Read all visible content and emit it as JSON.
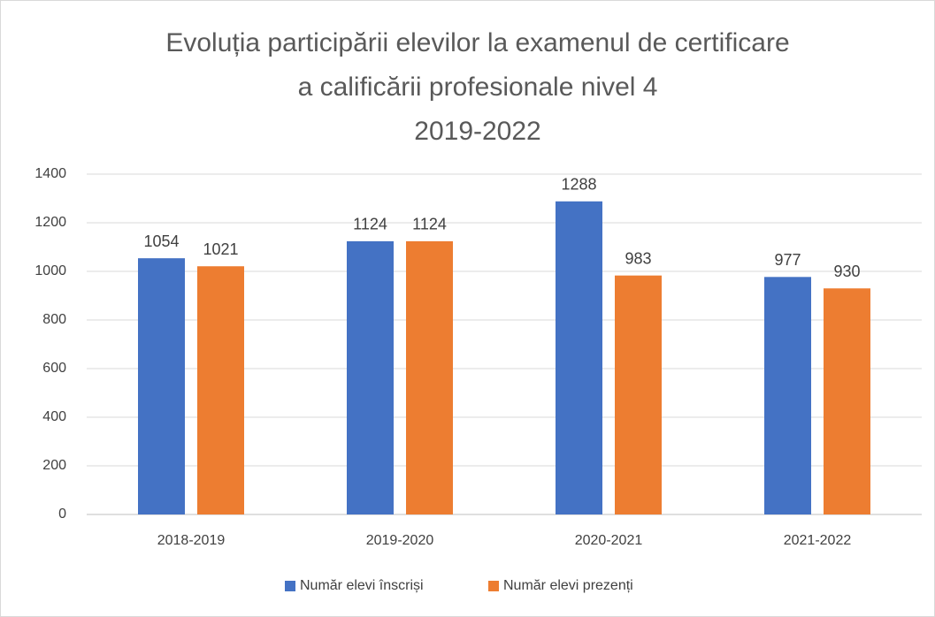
{
  "chart_data": {
    "type": "bar",
    "title": [
      "Evoluția participării elevilor la examenul de certificare",
      "a calificării profesionale nivel 4",
      "2019-2022"
    ],
    "categories": [
      "2018-2019",
      "2019-2020",
      "2020-2021",
      "2021-2022"
    ],
    "series": [
      {
        "name": "Număr elevi înscriși",
        "color": "#4472c4",
        "values": [
          1054,
          1124,
          1288,
          977
        ]
      },
      {
        "name": "Număr elevi prezenți",
        "color": "#ed7d31",
        "values": [
          1021,
          1124,
          983,
          930
        ]
      }
    ],
    "ylim": [
      0,
      1400
    ],
    "yticks": [
      0,
      200,
      400,
      600,
      800,
      1000,
      1200,
      1400
    ],
    "grid": true,
    "legend": "bottom"
  }
}
